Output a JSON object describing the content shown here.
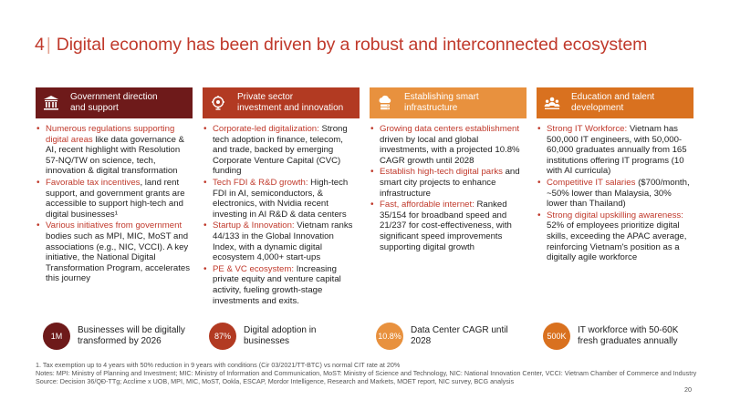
{
  "title": {
    "number": "4",
    "text": "Digital economy has been driven by a robust and interconnected ecosystem"
  },
  "columns": [
    {
      "header": [
        "Government direction",
        "and support"
      ],
      "icon": "government-building-icon",
      "items": [
        [
          {
            "t": "Numerous regulations supporting digital areas",
            "h": true
          },
          {
            "t": " like data governance & AI, recent highlight with Resolution 57-NQ/TW on science, tech, innovation & digital transformation",
            "h": false
          }
        ],
        [
          {
            "t": "Favorable tax incentives",
            "h": true
          },
          {
            "t": ", land rent support, and government grants are accessible to support high-tech and digital businesses¹",
            "h": false
          }
        ],
        [
          {
            "t": "Various initiatives from government",
            "h": true
          },
          {
            "t": " bodies such as MPI, MIC, MoST and associations (e.g., NIC, VCCI). A key initiative, the National Digital Transformation Program, accelerates this journey",
            "h": false
          }
        ]
      ]
    },
    {
      "header": [
        "Private sector",
        "investment and innovation"
      ],
      "icon": "light-bulb-gear-icon",
      "items": [
        [
          {
            "t": "Corporate-led digitalization:",
            "h": true
          },
          {
            "t": " Strong tech adoption in finance, telecom, and trade, backed by emerging Corporate Venture Capital (CVC) funding",
            "h": false
          }
        ],
        [
          {
            "t": "Tech FDI & R&D growth:",
            "h": true
          },
          {
            "t": " High-tech FDI in AI, semiconductors, & electronics, with Nvidia recent investing in AI R&D & data centers",
            "h": false
          }
        ],
        [
          {
            "t": "Startup & Innovation:",
            "h": true
          },
          {
            "t": " Vietnam ranks 44/133 in the Global Innovation Index, with a dynamic digital ecosystem 4,000+ start-ups",
            "h": false
          }
        ],
        [
          {
            "t": "PE & VC ecosystem:",
            "h": true
          },
          {
            "t": " Increasing private equity and venture capital activity, fueling growth-stage investments and exits.",
            "h": false
          }
        ]
      ]
    },
    {
      "header": [
        "Establishing smart",
        "infrastructure"
      ],
      "icon": "cloud-server-icon",
      "items": [
        [
          {
            "t": "Growing data centers establishment",
            "h": true
          },
          {
            "t": " driven by local and global investments, with a projected 10.8% CAGR growth until 2028",
            "h": false
          }
        ],
        [
          {
            "t": "Establish high-tech digital parks",
            "h": true
          },
          {
            "t": " and smart city projects to enhance infrastructure",
            "h": false
          }
        ],
        [
          {
            "t": "Fast, affordable internet:",
            "h": true
          },
          {
            "t": " Ranked 35/154 for broadband speed and 21/237 for cost-effectiveness, with significant speed improvements supporting digital growth",
            "h": false
          }
        ]
      ]
    },
    {
      "header": [
        "Education and talent",
        "development"
      ],
      "icon": "people-group-icon",
      "items": [
        [
          {
            "t": "Strong IT Workforce:",
            "h": true
          },
          {
            "t": " Vietnam has 500,000 IT engineers, with 50,000-60,000 graduates annually from 165 institutions offering IT programs (10 with AI curricula)",
            "h": false
          }
        ],
        [
          {
            "t": "Competitive IT salaries",
            "h": true
          },
          {
            "t": " ($700/month, ~50% lower than Malaysia, 30% lower than Thailand)",
            "h": false
          }
        ],
        [
          {
            "t": "Strong digital upskilling awareness:",
            "h": true
          },
          {
            "t": " 52% of employees prioritize digital skills, exceeding the APAC average, reinforcing Vietnam's position as a digitally agile workforce",
            "h": false
          }
        ]
      ]
    }
  ],
  "kpis": [
    {
      "value": "1M",
      "label": "Businesses will be digitally transformed by 2026"
    },
    {
      "value": "87%",
      "label": "Digital adoption in businesses"
    },
    {
      "value": "10.8%",
      "label": "Data Center CAGR until 2028"
    },
    {
      "value": "500K",
      "label": "IT workforce with 50-60K fresh graduates annually"
    }
  ],
  "footnotes": [
    "1. Tax exemption up to 4 years with 50% reduction in 9 years with conditions (Cir 03/2021/TT-BTC) vs normal CIT rate at 20%",
    "Notes: MPI: Ministry of Planning and Investment; MIC: Ministry of Information and Communication, MoST: Ministry of Science and Technology, NIC: National Innovation Center, VCCI: Vietnam Chamber of Commerce and Industry",
    "Source: Decision 36/QĐ-TTg; Acclime x UOB, MPI, MIC, MoST, Ookla, ESCAP, Mordor Intelligence, Research and Markets, MOET report, NIC survey, BCG analysis"
  ],
  "page_number": "20",
  "colors": {
    "accent": "#c0392b",
    "col1": "#6e1a1a",
    "col2": "#b23a22",
    "col3": "#e8913e",
    "col4": "#d9711f"
  }
}
